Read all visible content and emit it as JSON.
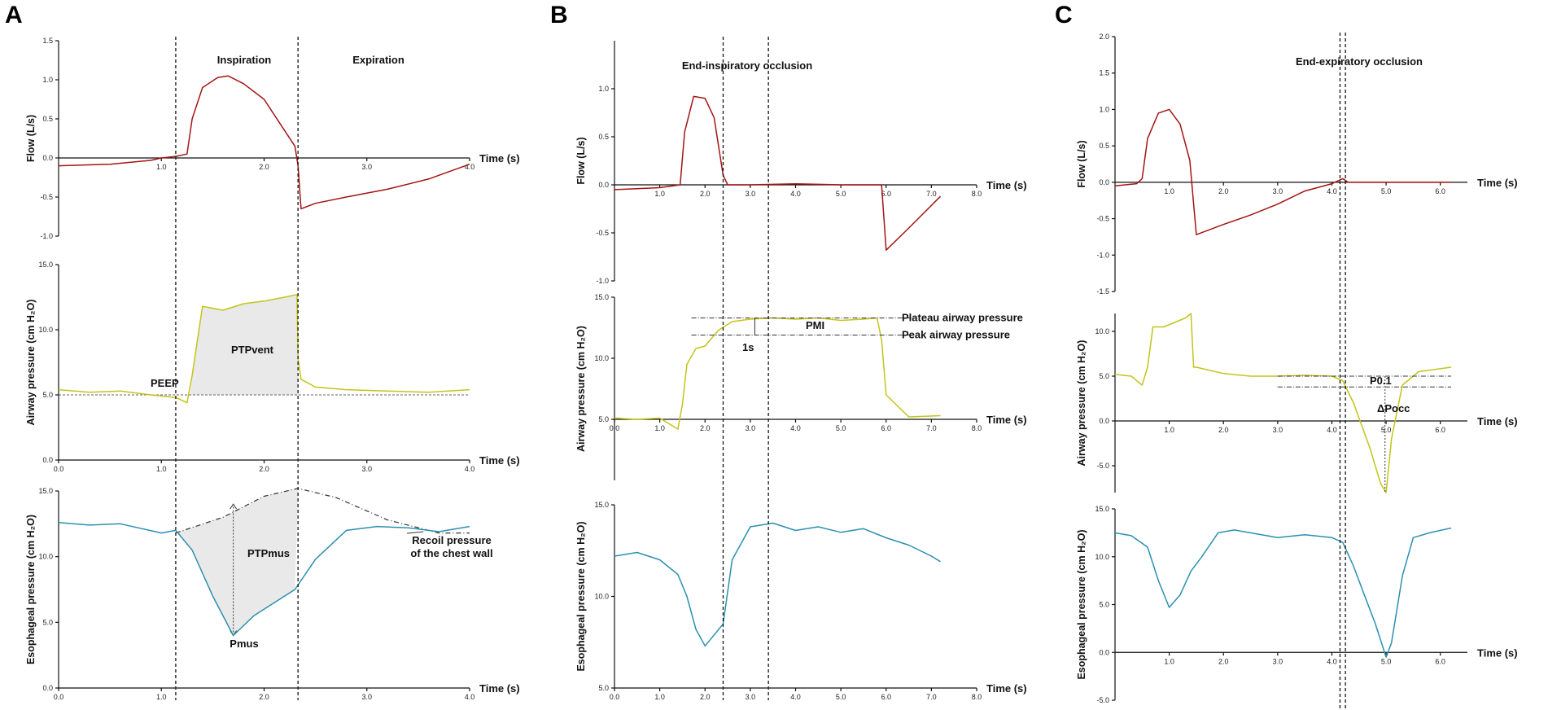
{
  "panels": [
    "A",
    "B",
    "C"
  ],
  "time_label": "Time (s)",
  "ylabels": {
    "flow": "Flow (L/s)",
    "airway": "Airway pressure (cm H₂O)",
    "eso": "Esophageal pressure (cm H₂O)"
  },
  "annotations": {
    "A": {
      "inspiration": "Inspiration",
      "expiration": "Expiration",
      "peep": "PEEP",
      "ptpvent": "PTPvent",
      "ptpmus": "PTPmus",
      "pmus": "Pmus",
      "recoil1": "Recoil pressure",
      "recoil2": "of the chest wall"
    },
    "B": {
      "occlusion": "End-inspiratory occlusion",
      "plateau": "Plateau airway pressure",
      "peak": "Peak airway pressure",
      "pmi": "PMI",
      "onesec": "1s"
    },
    "C": {
      "occlusion": "End-expiratory occlusion",
      "p01": "P0.1",
      "dpocc": "ΔPocc"
    }
  },
  "colors": {
    "flow": "#a31515",
    "airway": "#c3c41a",
    "eso": "#2b90b0",
    "shade": "#e9e9e9"
  },
  "chart_data": [
    {
      "panel": "A",
      "type": "line",
      "title": "",
      "vertical_markers_s": [
        1.14,
        2.33
      ],
      "subplots": [
        {
          "name": "Flow",
          "ylabel": "Flow (L/s)",
          "xlim": [
            0,
            4.0
          ],
          "ylim": [
            -1.0,
            1.5
          ],
          "xticks": [
            "1.0",
            "2.0",
            "3.0",
            "4.0"
          ],
          "yticks": [
            "-1.0",
            "-0.5",
            "0.0",
            "0.5",
            "1.0",
            "1.5"
          ],
          "x": [
            0.0,
            0.5,
            0.9,
            1.0,
            1.14,
            1.25,
            1.3,
            1.4,
            1.55,
            1.65,
            1.8,
            2.0,
            2.15,
            2.3,
            2.33,
            2.36,
            2.5,
            2.8,
            3.2,
            3.6,
            4.0
          ],
          "y": [
            -0.1,
            -0.08,
            -0.03,
            0.0,
            0.02,
            0.05,
            0.5,
            0.9,
            1.03,
            1.05,
            0.95,
            0.75,
            0.45,
            0.15,
            -0.1,
            -0.65,
            -0.58,
            -0.5,
            -0.4,
            -0.27,
            -0.08
          ]
        },
        {
          "name": "Airway pressure",
          "ylabel": "Airway pressure (cm H₂O)",
          "xlim": [
            0,
            4.0
          ],
          "ylim": [
            0,
            15
          ],
          "xticks": [
            "0.0",
            "1.0",
            "2.0",
            "3.0",
            "4.0"
          ],
          "yticks": [
            "0.0",
            "5.0",
            "10.0",
            "15.0"
          ],
          "peep": 5.0,
          "x": [
            0.0,
            0.3,
            0.6,
            0.9,
            1.14,
            1.25,
            1.3,
            1.4,
            1.6,
            1.8,
            2.0,
            2.2,
            2.32,
            2.33,
            2.36,
            2.5,
            2.8,
            3.2,
            3.6,
            4.0
          ],
          "y": [
            5.4,
            5.2,
            5.3,
            5.0,
            4.8,
            4.4,
            6.5,
            11.8,
            11.5,
            12.0,
            12.2,
            12.5,
            12.7,
            7.8,
            6.2,
            5.6,
            5.4,
            5.3,
            5.2,
            5.4
          ]
        },
        {
          "name": "Esophageal pressure",
          "ylabel": "Esophageal pressure (cm H₂O)",
          "xlim": [
            0,
            4.0
          ],
          "ylim": [
            0,
            15
          ],
          "xticks": [
            "0.0",
            "1.0",
            "2.0",
            "3.0",
            "4.0"
          ],
          "yticks": [
            "0.0",
            "5.0",
            "10.0",
            "15.0"
          ],
          "x": [
            0.0,
            0.3,
            0.6,
            1.0,
            1.14,
            1.3,
            1.5,
            1.7,
            1.9,
            2.1,
            2.3,
            2.5,
            2.8,
            3.1,
            3.4,
            3.7,
            4.0
          ],
          "y": [
            12.6,
            12.4,
            12.5,
            11.8,
            12.0,
            10.5,
            7.0,
            4.0,
            5.5,
            6.5,
            7.5,
            9.8,
            12.0,
            12.3,
            12.2,
            11.9,
            12.3
          ],
          "recoil_x": [
            1.14,
            1.6,
            2.0,
            2.33,
            2.7,
            3.2,
            3.7,
            4.0
          ],
          "recoil_y": [
            11.8,
            13.0,
            14.6,
            15.2,
            14.5,
            12.8,
            11.8,
            11.8
          ]
        }
      ]
    },
    {
      "panel": "B",
      "type": "line",
      "vertical_markers_s": [
        2.4,
        3.4
      ],
      "subplots": [
        {
          "name": "Flow",
          "ylabel": "Flow (L/s)",
          "xlim": [
            0,
            8.0
          ],
          "ylim": [
            -1.0,
            1.5
          ],
          "xticks": [
            "1.0",
            "2.0",
            "3.0",
            "4.0",
            "5.0",
            "6.0",
            "7.0",
            "8.0"
          ],
          "yticks": [
            "-1.0",
            "-0.5",
            "0.0",
            "0.5",
            "1.0"
          ],
          "x": [
            0.0,
            1.0,
            1.45,
            1.55,
            1.75,
            2.0,
            2.2,
            2.4,
            2.5,
            3.0,
            4.0,
            5.0,
            5.9,
            6.0,
            6.5,
            7.2
          ],
          "y": [
            -0.05,
            -0.03,
            0.0,
            0.55,
            0.92,
            0.9,
            0.7,
            0.1,
            0.0,
            0.0,
            0.01,
            0.0,
            0.0,
            -0.68,
            -0.45,
            -0.12
          ]
        },
        {
          "name": "Airway pressure",
          "ylabel": "Airway pressure (cm H₂O)",
          "xlim": [
            0,
            8.0
          ],
          "ylim": [
            0,
            15
          ],
          "xticks": [
            "0.0",
            "1.0",
            "2.0",
            "3.0",
            "4.0",
            "5.0",
            "6.0",
            "7.0",
            "8.0"
          ],
          "yticks": [
            "5.0",
            "10.0",
            "15.0"
          ],
          "plateau": 13.3,
          "peak": 11.9,
          "x": [
            0.0,
            0.5,
            1.0,
            1.4,
            1.5,
            1.6,
            1.8,
            2.0,
            2.3,
            2.6,
            3.0,
            3.5,
            4.0,
            4.5,
            5.0,
            5.5,
            5.8,
            5.9,
            6.0,
            6.5,
            7.2
          ],
          "y": [
            5.1,
            5.0,
            5.1,
            4.2,
            6.2,
            9.5,
            10.8,
            11.0,
            12.3,
            13.0,
            13.2,
            13.3,
            13.2,
            13.3,
            13.1,
            13.2,
            13.3,
            11.5,
            7.0,
            5.2,
            5.3
          ]
        },
        {
          "name": "Esophageal pressure",
          "ylabel": "Esophageal pressure (cm H₂O)",
          "xlim": [
            0,
            8.0
          ],
          "ylim": [
            5,
            15
          ],
          "xticks": [
            "0.0",
            "1.0",
            "2.0",
            "3.0",
            "4.0",
            "5.0",
            "6.0",
            "7.0",
            "8.0"
          ],
          "yticks": [
            "5.0",
            "10.0",
            "15.0"
          ],
          "x": [
            0.0,
            0.5,
            1.0,
            1.4,
            1.6,
            1.8,
            2.0,
            2.2,
            2.4,
            2.6,
            3.0,
            3.5,
            4.0,
            4.5,
            5.0,
            5.5,
            6.0,
            6.5,
            7.0,
            7.2
          ],
          "y": [
            12.2,
            12.4,
            12.0,
            11.2,
            10.0,
            8.2,
            7.3,
            7.9,
            8.5,
            12.0,
            13.8,
            14.0,
            13.6,
            13.8,
            13.5,
            13.7,
            13.2,
            12.8,
            12.2,
            11.9
          ]
        }
      ]
    },
    {
      "panel": "C",
      "type": "line",
      "vertical_markers_s": [
        4.15,
        4.25
      ],
      "subplots": [
        {
          "name": "Flow",
          "ylabel": "Flow (L/s)",
          "xlim": [
            0,
            6.5
          ],
          "ylim": [
            -1.5,
            2.0
          ],
          "xticks": [
            "1.0",
            "2.0",
            "3.0",
            "4.0",
            "5.0",
            "6.0"
          ],
          "yticks": [
            "-1.5",
            "-1.0",
            "-0.5",
            "0.0",
            "0.5",
            "1.0",
            "1.5",
            "2.0"
          ],
          "x": [
            0.0,
            0.4,
            0.5,
            0.6,
            0.8,
            1.0,
            1.2,
            1.38,
            1.45,
            1.5,
            2.0,
            2.5,
            3.0,
            3.5,
            4.0,
            4.2,
            4.3,
            5.0,
            6.2
          ],
          "y": [
            -0.05,
            -0.02,
            0.05,
            0.6,
            0.95,
            1.0,
            0.8,
            0.3,
            -0.3,
            -0.72,
            -0.58,
            -0.45,
            -0.3,
            -0.12,
            -0.02,
            0.05,
            0.0,
            0.0,
            0.0
          ]
        },
        {
          "name": "Airway pressure",
          "ylabel": "Airway pressure (cm H₂O)",
          "xlim": [
            0,
            6.5
          ],
          "ylim": [
            -8.0,
            12.0
          ],
          "xticks": [
            "1.0",
            "2.0",
            "3.0",
            "4.0",
            "5.0",
            "6.0"
          ],
          "yticks": [
            "-5.0",
            "0.0",
            "5.0",
            "10.0"
          ],
          "p01_level": 5.0,
          "dpocc_level": 3.8,
          "x": [
            0.0,
            0.3,
            0.5,
            0.6,
            0.7,
            0.9,
            1.1,
            1.3,
            1.4,
            1.45,
            1.5,
            2.0,
            2.5,
            3.0,
            3.5,
            4.0,
            4.2,
            4.4,
            4.7,
            4.9,
            5.0,
            5.1,
            5.3,
            5.6,
            6.2
          ],
          "y": [
            5.2,
            5.0,
            4.0,
            6.0,
            10.5,
            10.5,
            11.0,
            11.5,
            12.0,
            6.0,
            6.0,
            5.3,
            5.0,
            5.0,
            5.1,
            5.0,
            4.5,
            2.0,
            -3.0,
            -7.0,
            -8.0,
            -2.0,
            4.0,
            5.5,
            6.0
          ]
        },
        {
          "name": "Esophageal pressure",
          "ylabel": "Esophageal pressure (cm H₂O)",
          "xlim": [
            0,
            6.5
          ],
          "ylim": [
            -5.0,
            15.0
          ],
          "xticks": [
            "1.0",
            "2.0",
            "3.0",
            "4.0",
            "5.0",
            "6.0"
          ],
          "yticks": [
            "-5.0",
            "0.0",
            "5.0",
            "10.0",
            "15.0"
          ],
          "x": [
            0.0,
            0.3,
            0.6,
            0.8,
            1.0,
            1.2,
            1.4,
            1.6,
            1.9,
            2.2,
            2.5,
            3.0,
            3.5,
            4.0,
            4.2,
            4.4,
            4.6,
            4.8,
            5.0,
            5.1,
            5.3,
            5.5,
            5.8,
            6.2
          ],
          "y": [
            12.5,
            12.2,
            11.0,
            7.5,
            4.7,
            6.0,
            8.5,
            10.0,
            12.5,
            12.8,
            12.5,
            12.0,
            12.3,
            12.0,
            11.5,
            9.0,
            6.0,
            3.0,
            -0.5,
            1.0,
            8.0,
            12.0,
            12.5,
            13.0
          ]
        }
      ]
    }
  ]
}
